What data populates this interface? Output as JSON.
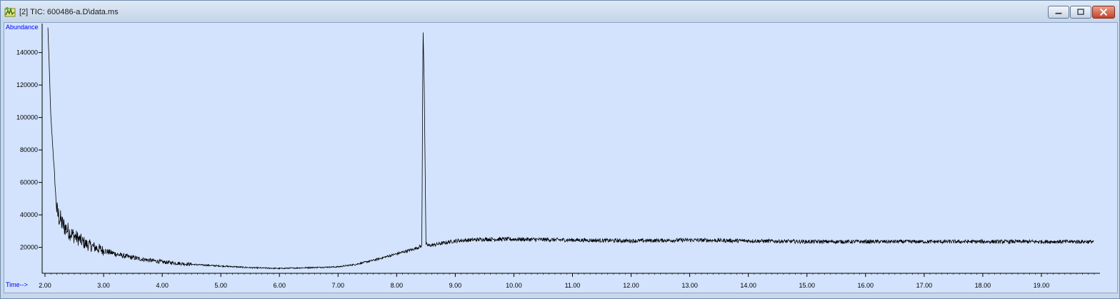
{
  "window": {
    "title": "[2] TIC: 600486-a.D\\data.ms",
    "icon": "chromatogram-app-icon"
  },
  "controls": {
    "minimize_icon": "minimize-icon",
    "maximize_icon": "maximize-icon",
    "close_icon": "close-icon"
  },
  "colors": {
    "plot_background": "#d3e3fd",
    "axis_label": "#0000ff",
    "trace": "#000000"
  },
  "chart_data": {
    "type": "line",
    "ylabel": "Abundance",
    "xlabel": "Time-->",
    "xlim": [
      2.0,
      20.0
    ],
    "ylim": [
      4000,
      157000
    ],
    "x_ticks": [
      "2.00",
      "3.00",
      "4.00",
      "5.00",
      "6.00",
      "7.00",
      "8.00",
      "9.00",
      "10.00",
      "11.00",
      "12.00",
      "13.00",
      "14.00",
      "15.00",
      "16.00",
      "17.00",
      "18.00",
      "19.00"
    ],
    "y_ticks": [
      "20000",
      "40000",
      "60000",
      "80000",
      "100000",
      "120000",
      "140000"
    ],
    "grid": false,
    "series": [
      {
        "x": [
          2.05,
          2.1,
          2.15,
          2.2,
          2.25,
          2.3,
          2.4,
          2.5,
          2.7,
          3.0,
          3.3,
          3.6,
          4.0,
          4.5,
          5.0,
          5.5,
          6.0,
          6.5,
          7.0,
          7.3,
          7.6,
          8.0,
          8.3,
          8.43,
          8.45,
          8.47,
          8.5,
          8.55,
          8.7,
          9.0,
          9.5,
          10.0,
          11.0,
          12.0,
          13.0,
          14.0,
          15.0,
          16.0,
          17.0,
          18.0,
          19.0,
          19.9
        ],
        "y": [
          155000,
          100000,
          72000,
          42000,
          38000,
          34000,
          30000,
          27000,
          22000,
          18000,
          15000,
          13000,
          11000,
          9500,
          8500,
          7500,
          7000,
          7500,
          8000,
          9500,
          12000,
          16000,
          19000,
          21000,
          156000,
          120000,
          22000,
          21000,
          22000,
          24000,
          25000,
          25000,
          24500,
          24000,
          24500,
          24000,
          23500,
          23500,
          23500,
          23500,
          23500,
          23500
        ]
      }
    ]
  }
}
